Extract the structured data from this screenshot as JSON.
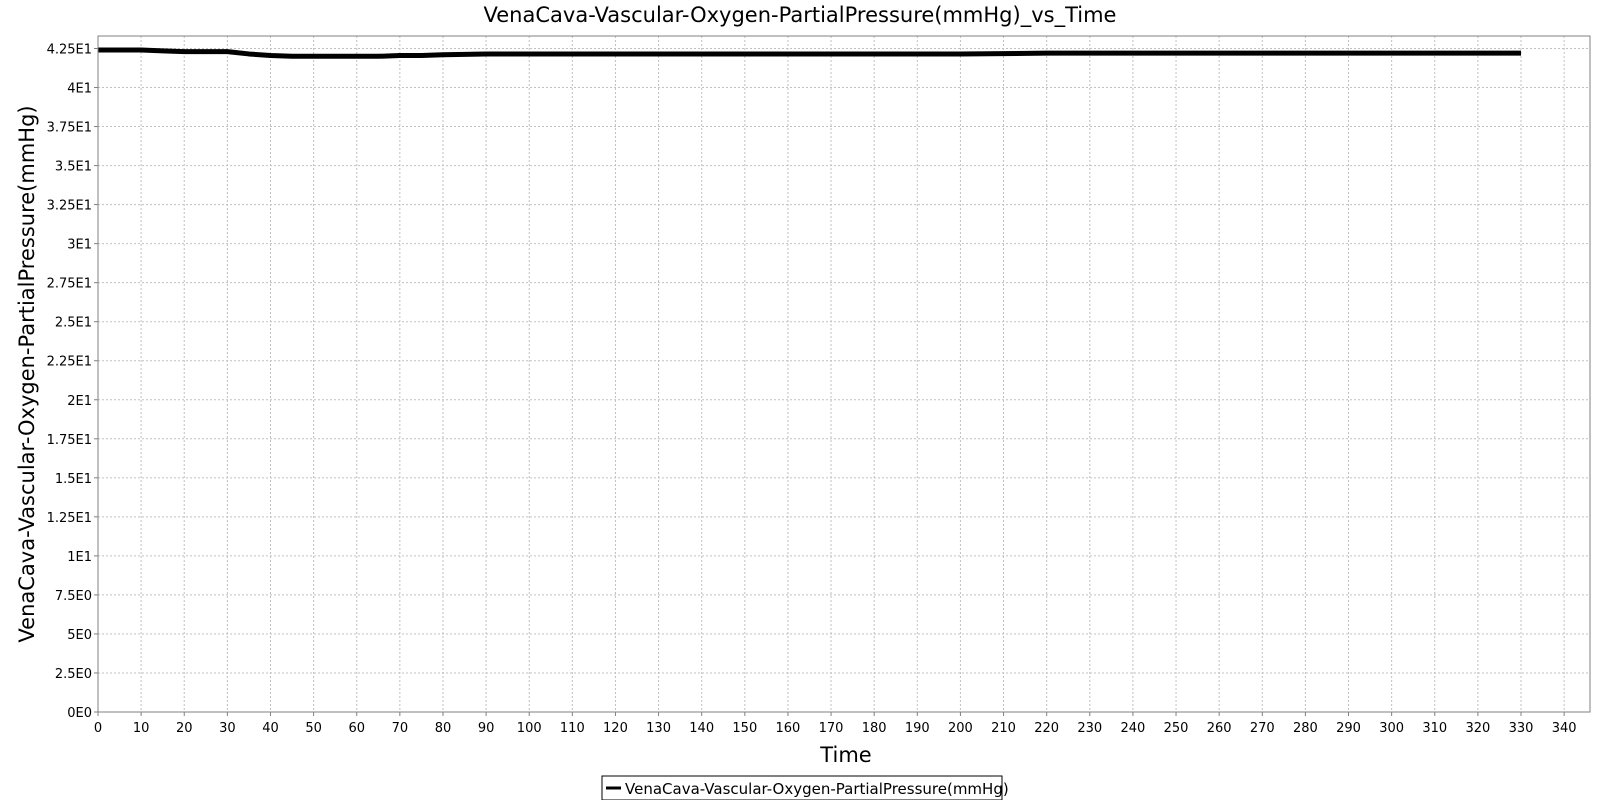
{
  "chart_data": {
    "type": "line",
    "title": "VenaCava-Vascular-Oxygen-PartialPressure(mmHg)_vs_Time",
    "xlabel": "Time",
    "ylabel": "VenaCava-Vascular-Oxygen-PartialPressure(mmHg)",
    "xlim": [
      0,
      346
    ],
    "ylim": [
      0,
      43.3
    ],
    "x_ticks": [
      0,
      10,
      20,
      30,
      40,
      50,
      60,
      70,
      80,
      90,
      100,
      110,
      120,
      130,
      140,
      150,
      160,
      170,
      180,
      190,
      200,
      210,
      220,
      230,
      240,
      250,
      260,
      270,
      280,
      290,
      300,
      310,
      320,
      330,
      340
    ],
    "x_tick_labels": [
      "0",
      "10",
      "20",
      "30",
      "40",
      "50",
      "60",
      "70",
      "80",
      "90",
      "100",
      "110",
      "120",
      "130",
      "140",
      "150",
      "160",
      "170",
      "180",
      "190",
      "200",
      "210",
      "220",
      "230",
      "240",
      "250",
      "260",
      "270",
      "280",
      "290",
      "300",
      "310",
      "320",
      "330",
      "340"
    ],
    "y_ticks": [
      0,
      2.5,
      5,
      7.5,
      10,
      12.5,
      15,
      17.5,
      20,
      22.5,
      25,
      27.5,
      30,
      32.5,
      35,
      37.5,
      40,
      42.5
    ],
    "y_tick_labels": [
      "0E0",
      "2.5E0",
      "5E0",
      "7.5E0",
      "1E1",
      "1.25E1",
      "1.5E1",
      "1.75E1",
      "2E1",
      "2.25E1",
      "2.5E1",
      "2.75E1",
      "3E1",
      "3.25E1",
      "3.5E1",
      "3.75E1",
      "4E1",
      "4.25E1"
    ],
    "grid": true,
    "legend_position": "bottom-center",
    "colors": {
      "series": "#000000",
      "grid": "#c0c0c0",
      "axis": "#808080",
      "background": "#ffffff"
    },
    "series": [
      {
        "name": "VenaCava-Vascular-Oxygen-PartialPressure(mmHg)",
        "x": [
          0,
          5,
          10,
          15,
          20,
          25,
          30,
          35,
          40,
          45,
          50,
          55,
          60,
          65,
          70,
          75,
          80,
          90,
          100,
          120,
          140,
          160,
          180,
          200,
          220,
          240,
          260,
          280,
          300,
          320,
          330
        ],
        "y": [
          42.4,
          42.4,
          42.4,
          42.35,
          42.3,
          42.3,
          42.3,
          42.15,
          42.05,
          42.0,
          42.0,
          42.0,
          42.0,
          42.0,
          42.05,
          42.05,
          42.1,
          42.15,
          42.15,
          42.15,
          42.15,
          42.15,
          42.15,
          42.15,
          42.2,
          42.2,
          42.2,
          42.2,
          42.2,
          42.2,
          42.2
        ]
      }
    ]
  }
}
